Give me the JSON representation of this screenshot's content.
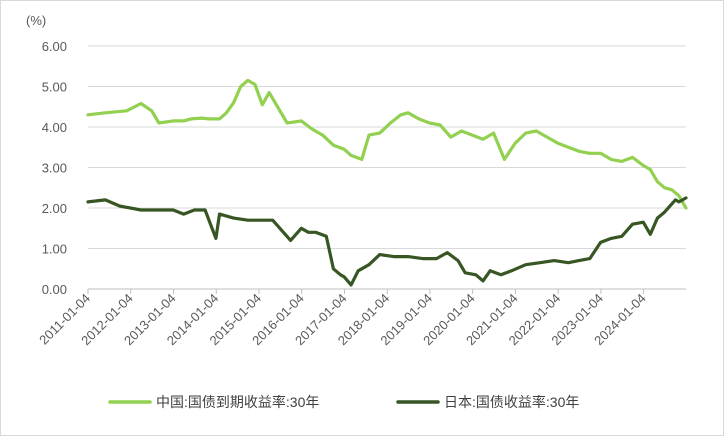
{
  "chart_data": {
    "type": "line",
    "unit_label": "(%)",
    "y_ticks": [
      "6.00",
      "5.00",
      "4.00",
      "3.00",
      "2.00",
      "1.00",
      "0.00"
    ],
    "ylim": [
      0,
      6
    ],
    "x_ticks": [
      "2011-01-04",
      "2012-01-04",
      "2013-01-04",
      "2014-01-04",
      "2015-01-04",
      "2016-01-04",
      "2017-01-04",
      "2018-01-04",
      "2019-01-04",
      "2020-01-04",
      "2021-01-04",
      "2022-01-04",
      "2023-01-04",
      "2024-01-04"
    ],
    "xlim": [
      "2011-01-04",
      "2024-12-31"
    ],
    "grid": "horizontal",
    "legend_position": "bottom",
    "series": [
      {
        "name": "中国:国债到期收益率:30年",
        "color": "#92d050",
        "points": [
          [
            "2011-01-04",
            4.3
          ],
          [
            "2011-06-01",
            4.35
          ],
          [
            "2011-12-01",
            4.4
          ],
          [
            "2012-04-01",
            4.58
          ],
          [
            "2012-07-01",
            4.4
          ],
          [
            "2012-09-01",
            4.1
          ],
          [
            "2013-01-01",
            4.15
          ],
          [
            "2013-04-01",
            4.15
          ],
          [
            "2013-06-01",
            4.2
          ],
          [
            "2013-09-01",
            4.22
          ],
          [
            "2013-11-01",
            4.2
          ],
          [
            "2014-02-01",
            4.2
          ],
          [
            "2014-04-01",
            4.35
          ],
          [
            "2014-06-01",
            4.6
          ],
          [
            "2014-08-01",
            5.0
          ],
          [
            "2014-10-01",
            5.15
          ],
          [
            "2014-12-01",
            5.05
          ],
          [
            "2015-02-01",
            4.55
          ],
          [
            "2015-04-01",
            4.85
          ],
          [
            "2015-06-01",
            4.55
          ],
          [
            "2015-09-01",
            4.1
          ],
          [
            "2016-01-01",
            4.15
          ],
          [
            "2016-04-01",
            3.95
          ],
          [
            "2016-07-01",
            3.8
          ],
          [
            "2016-10-01",
            3.55
          ],
          [
            "2017-01-01",
            3.45
          ],
          [
            "2017-03-01",
            3.3
          ],
          [
            "2017-06-01",
            3.2
          ],
          [
            "2017-08-01",
            3.8
          ],
          [
            "2017-11-01",
            3.85
          ],
          [
            "2018-02-01",
            4.1
          ],
          [
            "2018-05-01",
            4.3
          ],
          [
            "2018-07-01",
            4.35
          ],
          [
            "2018-10-01",
            4.2
          ],
          [
            "2019-01-01",
            4.1
          ],
          [
            "2019-04-01",
            4.05
          ],
          [
            "2019-07-01",
            3.75
          ],
          [
            "2019-10-01",
            3.9
          ],
          [
            "2020-01-01",
            3.8
          ],
          [
            "2020-04-01",
            3.7
          ],
          [
            "2020-07-01",
            3.85
          ],
          [
            "2020-10-01",
            3.2
          ],
          [
            "2021-01-01",
            3.6
          ],
          [
            "2021-04-01",
            3.85
          ],
          [
            "2021-07-01",
            3.9
          ],
          [
            "2021-10-01",
            3.75
          ],
          [
            "2022-01-01",
            3.6
          ],
          [
            "2022-04-01",
            3.5
          ],
          [
            "2022-07-01",
            3.4
          ],
          [
            "2022-10-01",
            3.35
          ],
          [
            "2023-01-01",
            3.35
          ],
          [
            "2023-04-01",
            3.2
          ],
          [
            "2023-07-01",
            3.15
          ],
          [
            "2023-10-01",
            3.25
          ],
          [
            "2024-01-01",
            3.05
          ],
          [
            "2024-03-01",
            2.95
          ],
          [
            "2024-05-01",
            2.65
          ],
          [
            "2024-07-01",
            2.5
          ],
          [
            "2024-09-01",
            2.45
          ],
          [
            "2024-11-01",
            2.3
          ],
          [
            "2024-12-31",
            2.0
          ]
        ]
      },
      {
        "name": "日本:国债收益率:30年",
        "color": "#375623",
        "points": [
          [
            "2011-01-04",
            2.15
          ],
          [
            "2011-06-01",
            2.2
          ],
          [
            "2011-10-01",
            2.05
          ],
          [
            "2012-04-01",
            1.95
          ],
          [
            "2012-08-01",
            1.95
          ],
          [
            "2013-01-01",
            1.95
          ],
          [
            "2013-04-01",
            1.85
          ],
          [
            "2013-07-01",
            1.95
          ],
          [
            "2013-10-01",
            1.95
          ],
          [
            "2014-01-01",
            1.25
          ],
          [
            "2014-02-01",
            1.85
          ],
          [
            "2014-06-01",
            1.75
          ],
          [
            "2014-10-01",
            1.7
          ],
          [
            "2015-02-01",
            1.7
          ],
          [
            "2015-05-01",
            1.7
          ],
          [
            "2015-08-01",
            1.4
          ],
          [
            "2015-10-01",
            1.2
          ],
          [
            "2016-01-01",
            1.5
          ],
          [
            "2016-03-01",
            1.4
          ],
          [
            "2016-05-01",
            1.4
          ],
          [
            "2016-08-01",
            1.3
          ],
          [
            "2016-10-01",
            0.5
          ],
          [
            "2016-12-01",
            0.35
          ],
          [
            "2017-01-01",
            0.3
          ],
          [
            "2017-03-01",
            0.1
          ],
          [
            "2017-05-01",
            0.45
          ],
          [
            "2017-08-01",
            0.6
          ],
          [
            "2017-11-01",
            0.85
          ],
          [
            "2018-03-01",
            0.8
          ],
          [
            "2018-07-01",
            0.8
          ],
          [
            "2018-11-01",
            0.75
          ],
          [
            "2019-03-01",
            0.75
          ],
          [
            "2019-06-01",
            0.9
          ],
          [
            "2019-09-01",
            0.7
          ],
          [
            "2019-11-01",
            0.4
          ],
          [
            "2020-02-01",
            0.35
          ],
          [
            "2020-04-01",
            0.2
          ],
          [
            "2020-06-01",
            0.45
          ],
          [
            "2020-09-01",
            0.35
          ],
          [
            "2020-12-01",
            0.45
          ],
          [
            "2021-04-01",
            0.6
          ],
          [
            "2021-08-01",
            0.65
          ],
          [
            "2021-12-01",
            0.7
          ],
          [
            "2022-04-01",
            0.65
          ],
          [
            "2022-07-01",
            0.7
          ],
          [
            "2022-10-01",
            0.75
          ],
          [
            "2023-01-01",
            1.15
          ],
          [
            "2023-04-01",
            1.25
          ],
          [
            "2023-07-01",
            1.3
          ],
          [
            "2023-10-01",
            1.6
          ],
          [
            "2024-01-01",
            1.65
          ],
          [
            "2024-03-01",
            1.35
          ],
          [
            "2024-05-01",
            1.75
          ],
          [
            "2024-07-01",
            1.9
          ],
          [
            "2024-09-01",
            2.1
          ],
          [
            "2024-10-01",
            2.2
          ],
          [
            "2024-11-01",
            2.15
          ],
          [
            "2024-12-31",
            2.25
          ]
        ]
      }
    ]
  }
}
